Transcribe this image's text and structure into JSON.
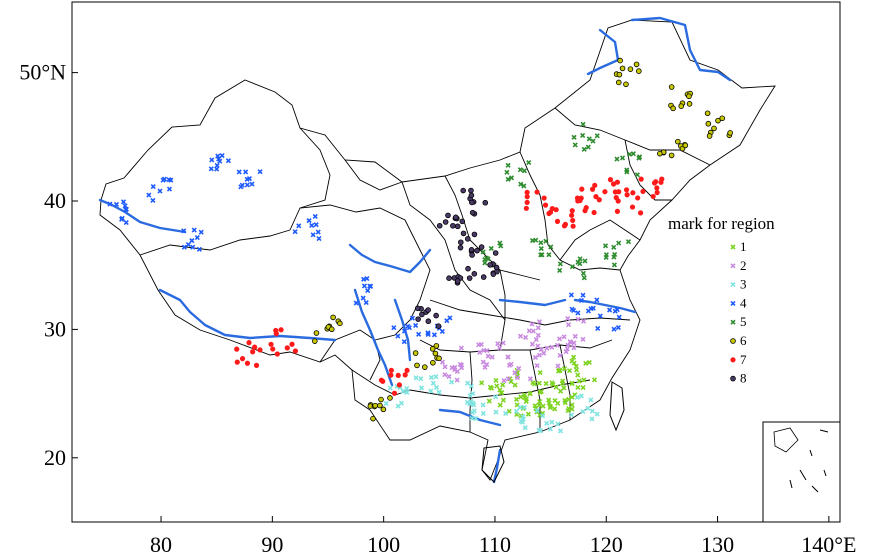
{
  "map": {
    "lon_range": [
      72,
      141
    ],
    "lat_range": [
      15,
      55.5
    ],
    "x_ticks": [
      {
        "value": 80,
        "label": "80"
      },
      {
        "value": 90,
        "label": "90"
      },
      {
        "value": 100,
        "label": "100"
      },
      {
        "value": 110,
        "label": "110"
      },
      {
        "value": 120,
        "label": "120"
      },
      {
        "value": 130,
        "label": "130"
      },
      {
        "value": 140,
        "label": "140°E"
      }
    ],
    "y_ticks": [
      {
        "value": 20,
        "label": "20"
      },
      {
        "value": 30,
        "label": "30"
      },
      {
        "value": 40,
        "label": "40"
      },
      {
        "value": 50,
        "label": "50°N"
      }
    ],
    "inset": "South China Sea islands inset (bottom-right)"
  },
  "legend": {
    "title": "mark for region",
    "placement": "right",
    "items": [
      {
        "label": "1",
        "color": "#7ed321",
        "marker": "x"
      },
      {
        "label": "2",
        "color": "#c98be0",
        "marker": "x"
      },
      {
        "label": "3",
        "color": "#7fe3e0",
        "marker": "x"
      },
      {
        "label": "4",
        "color": "#1e5bff",
        "marker": "x"
      },
      {
        "label": "5",
        "color": "#2e8b2e",
        "marker": "x"
      },
      {
        "label": "6",
        "color": "#c8c800",
        "marker": "circle-open"
      },
      {
        "label": "7",
        "color": "#ff1a1a",
        "marker": "dot"
      },
      {
        "label": "8",
        "color": "#4a3a66",
        "marker": "circle-open"
      }
    ]
  },
  "chart_data": {
    "type": "scatter",
    "x_unit": "longitude (°E)",
    "y_unit": "latitude (°N)",
    "series": [
      {
        "name": "1",
        "region_points": [
          [
            110,
            25
          ],
          [
            111,
            26
          ],
          [
            113,
            25
          ],
          [
            114,
            24
          ],
          [
            115,
            26
          ],
          [
            116,
            25
          ],
          [
            117,
            26
          ],
          [
            118,
            27
          ],
          [
            116,
            24
          ],
          [
            112,
            24
          ]
        ]
      },
      {
        "name": "2",
        "region_points": [
          [
            106,
            27
          ],
          [
            108,
            28
          ],
          [
            110,
            28
          ],
          [
            112,
            27
          ],
          [
            114,
            28
          ],
          [
            116,
            28
          ],
          [
            113,
            30
          ],
          [
            117,
            30
          ]
        ]
      },
      {
        "name": "3",
        "region_points": [
          [
            101,
            25
          ],
          [
            104,
            26
          ],
          [
            107,
            25
          ],
          [
            109,
            24
          ],
          [
            112,
            23
          ],
          [
            115,
            23
          ],
          [
            118,
            24
          ]
        ]
      },
      {
        "name": "4",
        "region_points": [
          [
            76,
            39
          ],
          [
            80,
            41
          ],
          [
            85,
            43
          ],
          [
            88,
            42
          ],
          [
            83,
            37
          ],
          [
            93,
            38
          ],
          [
            98,
            33
          ],
          [
            102,
            30
          ],
          [
            105,
            30
          ],
          [
            118,
            32
          ],
          [
            120,
            31
          ]
        ]
      },
      {
        "name": "5",
        "region_points": [
          [
            112,
            42
          ],
          [
            118,
            45
          ],
          [
            122,
            43
          ],
          [
            110,
            36
          ],
          [
            114,
            36
          ],
          [
            117,
            35
          ],
          [
            121,
            36
          ]
        ]
      },
      {
        "name": "6",
        "region_points": [
          [
            122,
            50
          ],
          [
            127,
            48
          ],
          [
            130,
            46
          ],
          [
            126,
            44
          ],
          [
            100,
            24
          ],
          [
            104,
            28
          ],
          [
            95,
            30
          ]
        ]
      },
      {
        "name": "7",
        "region_points": [
          [
            114,
            40
          ],
          [
            116,
            39
          ],
          [
            118,
            40
          ],
          [
            120,
            41
          ],
          [
            122,
            40
          ],
          [
            124,
            41
          ],
          [
            88,
            28
          ],
          [
            91,
            29
          ],
          [
            101,
            26
          ]
        ]
      },
      {
        "name": "8",
        "region_points": [
          [
            106,
            38
          ],
          [
            108,
            37
          ],
          [
            109,
            35
          ],
          [
            107,
            34
          ],
          [
            104,
            31
          ],
          [
            108,
            40
          ]
        ]
      }
    ]
  }
}
